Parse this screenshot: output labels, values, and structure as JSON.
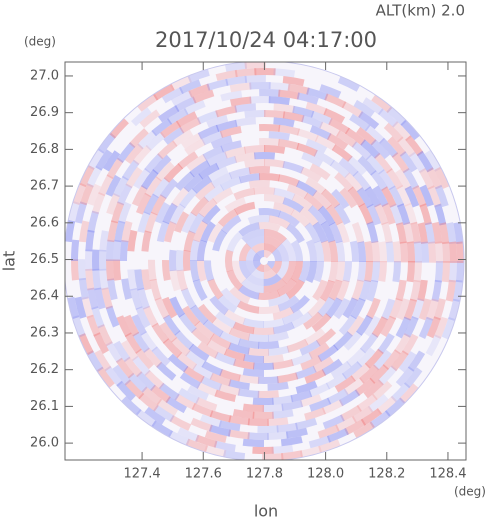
{
  "chart_data": {
    "type": "radar-image",
    "title": "2017/10/24 04:17:00",
    "subtitle": "ALT(km) 2.0",
    "x_label": "lon",
    "y_label": "lat",
    "x_unit": "(deg)",
    "y_unit": "(deg)",
    "xlim": [
      127.148,
      128.459
    ],
    "ylim": [
      25.954,
      27.038
    ],
    "xticks": [
      127.4,
      127.6,
      127.8,
      {
        "value": 128,
        "label": "128.0"
      },
      128.2,
      128.4
    ],
    "yticks": [
      {
        "value": 26,
        "label": "26.0"
      },
      26.1,
      26.2,
      26.3,
      26.4,
      26.5,
      26.6,
      26.7,
      26.8,
      26.9,
      {
        "value": 27,
        "label": "27.0"
      }
    ]
  }
}
